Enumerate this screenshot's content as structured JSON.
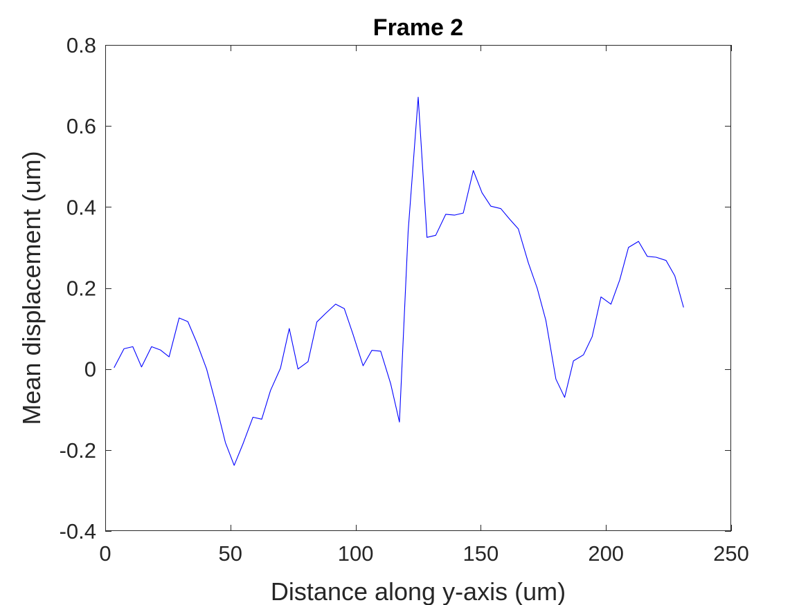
{
  "chart_data": {
    "type": "line",
    "title": "Frame 2",
    "xlabel": "Distance along y-axis (um)",
    "ylabel": "Mean displacement (um)",
    "xlim": [
      0,
      250
    ],
    "ylim": [
      -0.4,
      0.8
    ],
    "xticks": [
      0,
      50,
      100,
      150,
      200,
      250
    ],
    "yticks": [
      -0.4,
      -0.2,
      0,
      0.2,
      0.4,
      0.6,
      0.8
    ],
    "xtick_labels": [
      "0",
      "50",
      "100",
      "150",
      "200",
      "250"
    ],
    "ytick_labels": [
      "-0.4",
      "-0.2",
      "0",
      "0.2",
      "0.4",
      "0.6",
      "0.8"
    ],
    "grid": false,
    "line_color": "#0000ff",
    "series": [
      {
        "x": [
          3.5,
          7.5,
          11,
          14.5,
          18.5,
          22,
          25.5,
          29.5,
          33,
          36.5,
          40.5,
          44,
          48,
          51.5,
          55,
          59,
          62.5,
          66,
          70,
          73.5,
          77,
          81,
          84.5,
          88,
          92,
          95.5,
          99,
          103,
          106.5,
          110,
          114,
          117.5,
          121,
          125,
          128.5,
          132,
          136,
          139.5,
          143,
          147,
          150.5,
          154,
          158,
          161.5,
          165,
          169,
          172.5,
          176,
          180,
          183.5,
          187,
          191,
          194.5,
          198,
          202,
          205.5,
          209,
          213,
          216.5,
          220,
          224,
          227.5,
          231
        ],
        "y": [
          0.003,
          0.05,
          0.055,
          0.005,
          0.055,
          0.047,
          0.03,
          0.126,
          0.117,
          0.066,
          0.0,
          -0.082,
          -0.182,
          -0.238,
          -0.185,
          -0.119,
          -0.124,
          -0.053,
          0.002,
          0.1,
          0.0,
          0.018,
          0.116,
          0.137,
          0.16,
          0.149,
          0.085,
          0.008,
          0.046,
          0.044,
          -0.036,
          -0.131,
          0.34,
          0.671,
          0.325,
          0.33,
          0.382,
          0.38,
          0.385,
          0.49,
          0.435,
          0.402,
          0.396,
          0.37,
          0.346,
          0.262,
          0.2,
          0.12,
          -0.025,
          -0.07,
          0.02,
          0.035,
          0.08,
          0.178,
          0.16,
          0.22,
          0.3,
          0.315,
          0.278,
          0.276,
          0.268,
          0.23,
          0.152
        ]
      }
    ]
  }
}
